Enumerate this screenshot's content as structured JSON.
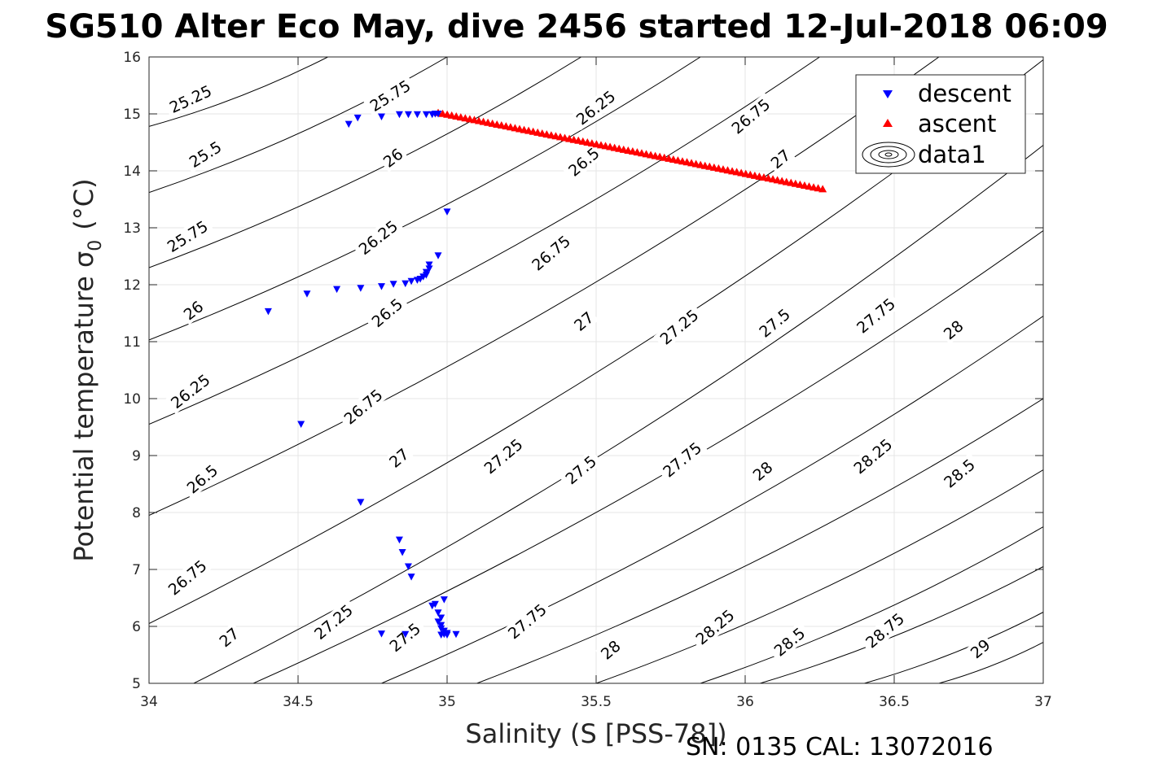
{
  "chart_data": {
    "type": "scatter",
    "title": "SG510 Alter Eco May, dive 2456 started 12-Jul-2018 06:09",
    "xlabel": "Salinity (S [PSS-78])",
    "ylabel": "Potential temperature σ",
    "ylabel_subscript": "0",
    "ylabel_unit": "(°C)",
    "xlim": [
      34,
      37
    ],
    "ylim": [
      5,
      16
    ],
    "x_ticks": [
      "34",
      "34.5",
      "35",
      "35.5",
      "36",
      "36.5",
      "37"
    ],
    "y_ticks": [
      "5",
      "6",
      "7",
      "8",
      "9",
      "10",
      "11",
      "12",
      "13",
      "14",
      "15",
      "16"
    ],
    "grid": true,
    "legend_position": "top-right",
    "footer": "SN: 0135  CAL: 13072016",
    "series": [
      {
        "name": "descent",
        "marker": "triangle-down",
        "color": "#0000ff",
        "points": [
          [
            34.67,
            14.82
          ],
          [
            34.7,
            14.93
          ],
          [
            34.78,
            14.95
          ],
          [
            34.84,
            14.99
          ],
          [
            34.87,
            14.99
          ],
          [
            34.9,
            14.99
          ],
          [
            34.93,
            14.99
          ],
          [
            34.95,
            14.99
          ],
          [
            34.96,
            15.0
          ],
          [
            34.97,
            15.0
          ],
          [
            35.0,
            13.28
          ],
          [
            34.97,
            12.51
          ],
          [
            34.94,
            12.35
          ],
          [
            34.94,
            12.28
          ],
          [
            34.93,
            12.22
          ],
          [
            34.93,
            12.17
          ],
          [
            34.92,
            12.14
          ],
          [
            34.91,
            12.1
          ],
          [
            34.9,
            12.08
          ],
          [
            34.88,
            12.06
          ],
          [
            34.86,
            12.02
          ],
          [
            34.82,
            12.01
          ],
          [
            34.78,
            11.97
          ],
          [
            34.71,
            11.94
          ],
          [
            34.63,
            11.92
          ],
          [
            34.53,
            11.84
          ],
          [
            34.4,
            11.53
          ],
          [
            34.51,
            9.55
          ],
          [
            34.71,
            8.18
          ],
          [
            34.84,
            7.52
          ],
          [
            34.85,
            7.3
          ],
          [
            34.87,
            7.05
          ],
          [
            34.88,
            6.87
          ],
          [
            34.99,
            6.47
          ],
          [
            34.96,
            6.39
          ],
          [
            34.95,
            6.36
          ],
          [
            34.97,
            6.24
          ],
          [
            34.98,
            6.15
          ],
          [
            34.97,
            6.08
          ],
          [
            34.98,
            6.02
          ],
          [
            34.98,
            5.96
          ],
          [
            34.99,
            5.92
          ],
          [
            35.0,
            5.88
          ],
          [
            34.99,
            5.86
          ],
          [
            35.03,
            5.86
          ],
          [
            34.78,
            5.87
          ],
          [
            34.86,
            5.86
          ],
          [
            35.0,
            5.85
          ],
          [
            34.98,
            5.85
          ]
        ]
      },
      {
        "name": "ascent",
        "marker": "triangle-up",
        "color": "#ff0000",
        "from": [
          34.97,
          15.02
        ],
        "to": [
          36.26,
          13.68
        ],
        "count": 86
      },
      {
        "name": "data1",
        "marker": "contour",
        "color": "#000000",
        "levels": [
          {
            "label": "25.25",
            "line": [
              [
                34.0,
                14.78
              ],
              [
                34.6,
                16.0
              ]
            ],
            "label_at": [
              34.14,
              15.25
            ],
            "angle": -25
          },
          {
            "label": "25.5",
            "line": [
              [
                34.0,
                13.62
              ],
              [
                35.0,
                16.0
              ]
            ],
            "label_at": [
              34.19,
              14.28
            ],
            "angle": -32
          },
          {
            "label": "25.75",
            "line": [
              [
                34.0,
                12.3
              ],
              [
                35.45,
                16.0
              ]
            ],
            "label_at": [
              34.13,
              12.84
            ],
            "angle": -32,
            "label2_at": [
              34.81,
              15.31
            ]
          },
          {
            "label": "26",
            "line": [
              [
                34.0,
                11.03
              ],
              [
                35.85,
                16.0
              ]
            ],
            "label_at": [
              34.15,
              11.54
            ],
            "angle": -38,
            "label2_at": [
              34.82,
              14.22
            ]
          },
          {
            "label": "26.25",
            "line": [
              [
                34.0,
                9.55
              ],
              [
                36.25,
                16.0
              ]
            ],
            "label_at": [
              34.14,
              10.12
            ],
            "angle": -38,
            "label2_at": [
              34.77,
              12.82
            ],
            "label3_at": [
              35.5,
              15.1
            ]
          },
          {
            "label": "26.5",
            "line": [
              [
                34.0,
                7.95
              ],
              [
                36.65,
                16.0
              ]
            ],
            "label_at": [
              34.18,
              8.58
            ],
            "angle": -40,
            "label2_at": [
              34.8,
              11.5
            ],
            "label3_at": [
              35.46,
              14.15
            ]
          },
          {
            "label": "26.75",
            "line": [
              [
                34.0,
                6.05
              ],
              [
                37.0,
                15.95
              ]
            ],
            "label_at": [
              34.13,
              6.85
            ],
            "angle": -40,
            "label2_at": [
              34.72,
              9.85
            ],
            "label3_at": [
              35.35,
              12.55
            ],
            "label4_at": [
              36.02,
              14.95
            ]
          },
          {
            "label": "27",
            "line": [
              [
                34.15,
                5.0
              ],
              [
                37.0,
                14.45
              ]
            ],
            "label_at": [
              34.27,
              5.8
            ],
            "angle": -40,
            "label2_at": [
              34.84,
              8.95
            ],
            "label3_at": [
              35.46,
              11.35
            ],
            "label4_at": [
              36.12,
              14.2
            ]
          },
          {
            "label": "27.25",
            "line": [
              [
                34.35,
                5.0
              ],
              [
                37.0,
                12.95
              ]
            ],
            "label_at": [
              34.62,
              6.07
            ],
            "angle": -40,
            "label2_at": [
              35.19,
              8.98
            ],
            "label3_at": [
              35.78,
              11.25
            ]
          },
          {
            "label": "27.5",
            "line": [
              [
                34.78,
                5.0
              ],
              [
                37.0,
                11.45
              ]
            ],
            "label_at": [
              34.86,
              5.8
            ],
            "angle": -40,
            "label2_at": [
              35.45,
              8.74
            ],
            "label3_at": [
              36.1,
              11.32
            ]
          },
          {
            "label": "27.75",
            "line": [
              [
                35.1,
                5.0
              ],
              [
                37.0,
                10.0
              ]
            ],
            "label_at": [
              35.27,
              6.08
            ],
            "angle": -40,
            "label2_at": [
              35.79,
              8.92
            ],
            "label3_at": [
              36.44,
              11.45
            ]
          },
          {
            "label": "28",
            "line": [
              [
                35.5,
                5.0
              ],
              [
                37.0,
                8.75
              ]
            ],
            "label_at": [
              35.55,
              5.58
            ],
            "angle": -40,
            "label2_at": [
              36.06,
              8.72
            ],
            "label3_at": [
              36.7,
              11.2
            ]
          },
          {
            "label": "28.25",
            "line": [
              [
                35.85,
                5.0
              ],
              [
                37.0,
                7.75
              ]
            ],
            "label_at": [
              35.9,
              5.98
            ],
            "angle": -40,
            "label2_at": [
              36.43,
              8.98
            ]
          },
          {
            "label": "28.5",
            "line": [
              [
                36.05,
                5.0
              ],
              [
                37.0,
                7.05
              ]
            ],
            "label_at": [
              36.15,
              5.72
            ],
            "angle": -40,
            "label2_at": [
              36.72,
              8.68
            ]
          },
          {
            "label": "28.75",
            "line": [
              [
                36.4,
                5.0
              ],
              [
                37.0,
                6.25
              ]
            ],
            "label_at": [
              36.47,
              5.92
            ],
            "angle": -40
          },
          {
            "label": "29",
            "line": [
              [
                36.65,
                5.0
              ],
              [
                37.0,
                5.72
              ]
            ],
            "label_at": [
              36.79,
              5.6
            ],
            "angle": -40
          }
        ]
      }
    ]
  }
}
